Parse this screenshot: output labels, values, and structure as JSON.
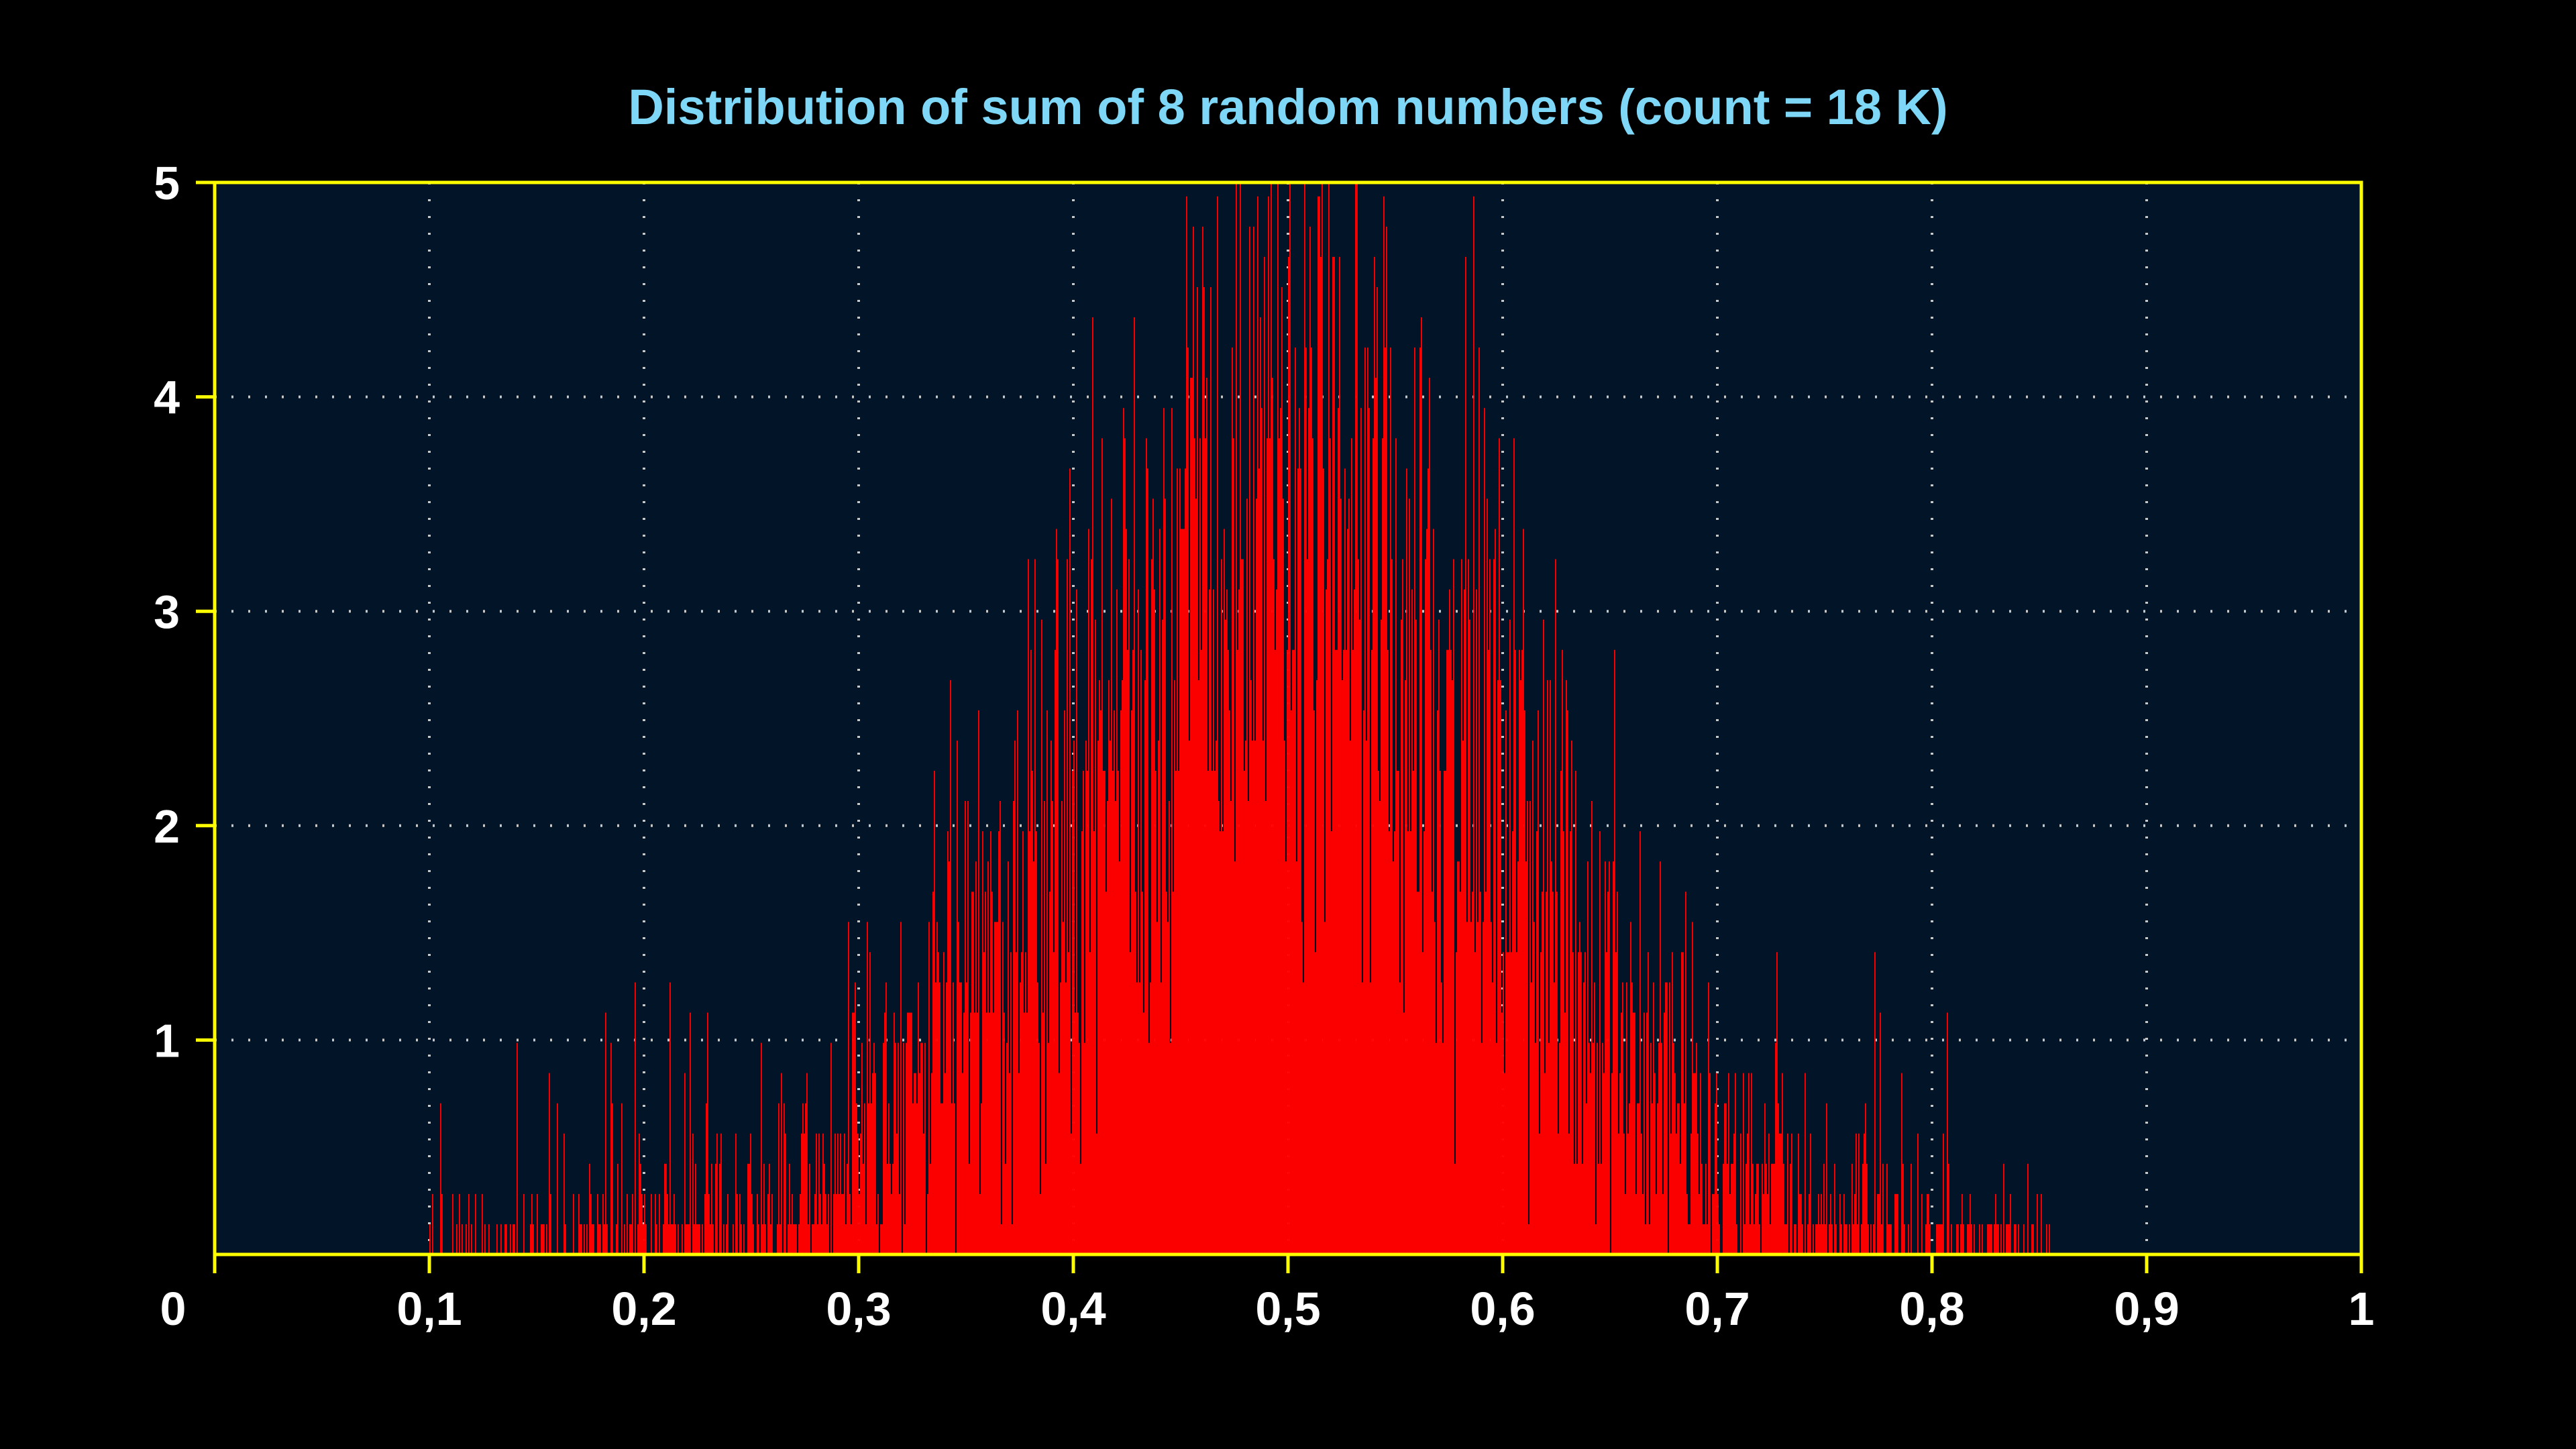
{
  "chart_data": {
    "type": "bar",
    "title": "Distribution of sum of 8 random numbers (count = 18 K)",
    "xlabel": "",
    "ylabel": "",
    "xlim": [
      0,
      1
    ],
    "ylim": [
      0,
      5
    ],
    "x_ticks": [
      "0",
      "0,1",
      "0,2",
      "0,3",
      "0,4",
      "0,5",
      "0,6",
      "0,7",
      "0,8",
      "0,9",
      "1"
    ],
    "y_ticks": [
      "1",
      "2",
      "3",
      "4",
      "5"
    ],
    "grid": true,
    "legend": "none",
    "distribution": {
      "description_of_values": "histogram of mean of 8 uniform random numbers",
      "mean": 0.5,
      "std": 0.102,
      "count": 18000,
      "x_min_nonzero": 0.1,
      "x_max_nonzero": 0.855,
      "peak_value": 5
    },
    "envelope": {
      "x": [
        0.1,
        0.15,
        0.2,
        0.25,
        0.3,
        0.35,
        0.4,
        0.45,
        0.5,
        0.55,
        0.6,
        0.65,
        0.7,
        0.75,
        0.8,
        0.85
      ],
      "y": [
        0.1,
        0.15,
        0.3,
        0.6,
        1.1,
        2.0,
        3.0,
        3.9,
        4.6,
        3.9,
        2.9,
        1.9,
        1.0,
        0.5,
        0.2,
        0.1
      ]
    },
    "colors": {
      "bars": "#ff0000",
      "plot_background": "#021428",
      "page_background": "#000000",
      "axis": "#ffff00",
      "grid": "#c8c8c8",
      "title": "#7fd7f7",
      "tick_labels": "#ffffff"
    }
  }
}
